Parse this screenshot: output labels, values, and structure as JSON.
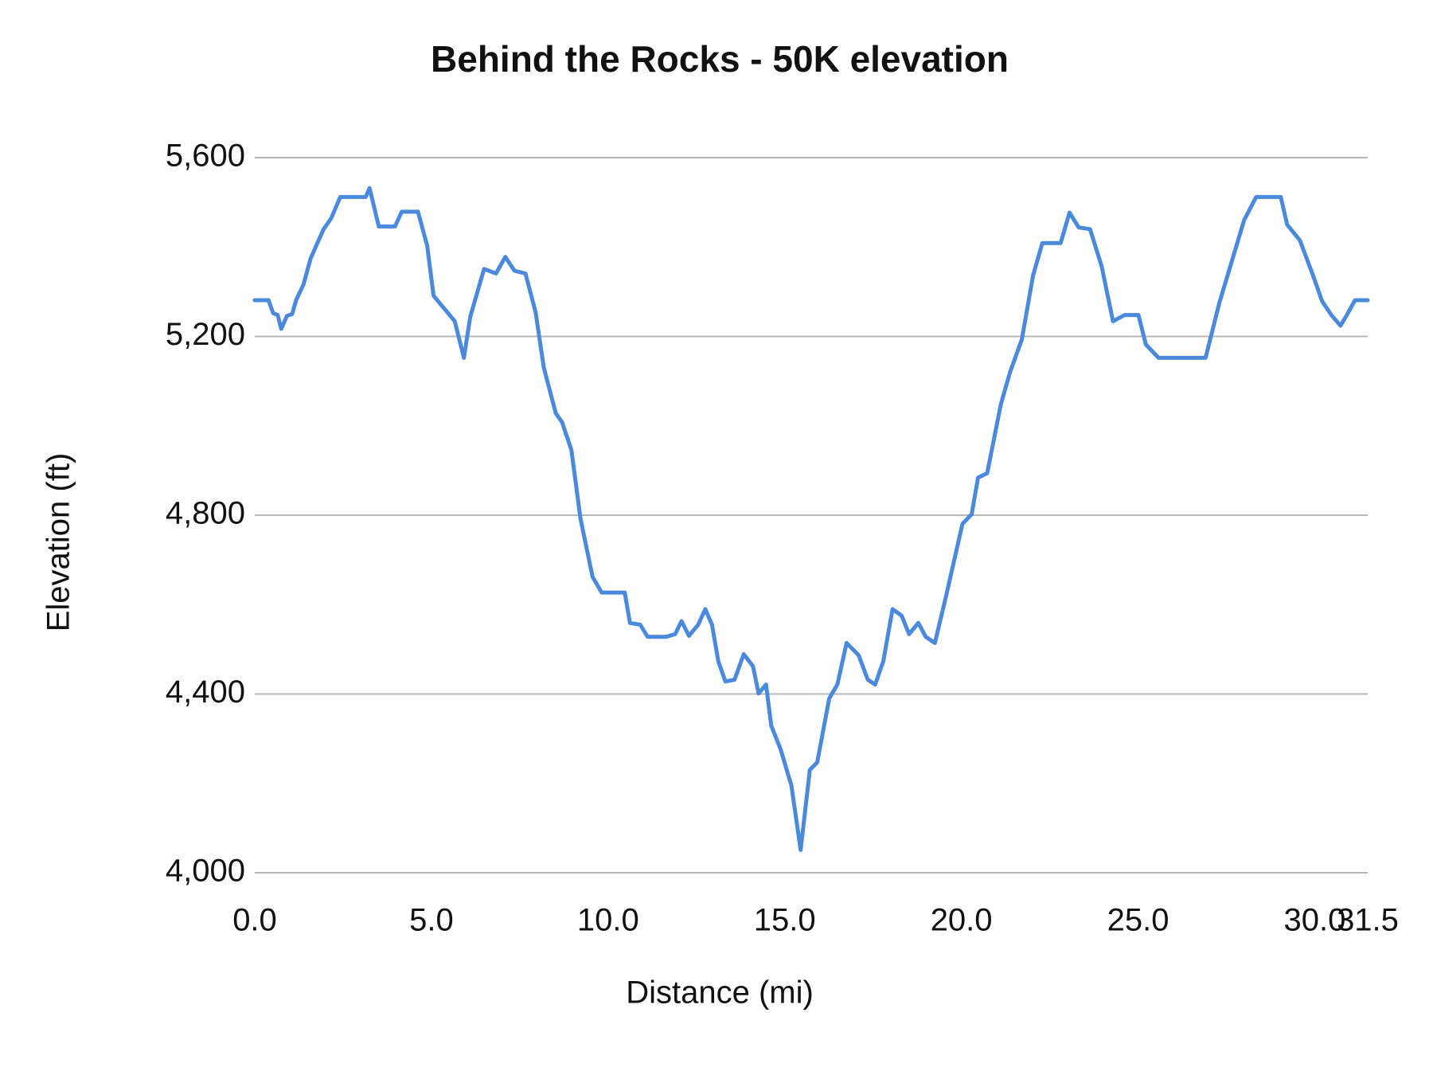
{
  "chart_data": {
    "type": "line",
    "title": "Behind the Rocks - 50K elevation",
    "x_label": "Distance (mi)",
    "y_label": "Elevation (ft)",
    "xlim": [
      0,
      31.5
    ],
    "ylim": [
      4000,
      5600
    ],
    "xticks": [
      {
        "value": 0,
        "label": "0.0"
      },
      {
        "value": 5,
        "label": "5.0"
      },
      {
        "value": 10,
        "label": "10.0"
      },
      {
        "value": 15,
        "label": "15.0"
      },
      {
        "value": 20,
        "label": "20.0"
      },
      {
        "value": 25,
        "label": "25.0"
      },
      {
        "value": 30,
        "label": "30.0"
      },
      {
        "value": 31.5,
        "label": "31.5"
      }
    ],
    "yticks": [
      {
        "value": 4000,
        "label": "4,000"
      },
      {
        "value": 4400,
        "label": "4,400"
      },
      {
        "value": 4800,
        "label": "4,800"
      },
      {
        "value": 5200,
        "label": "5,200"
      },
      {
        "value": 5600,
        "label": "5,600"
      }
    ],
    "grid": true,
    "x": [
      0,
      0.39,
      0.52,
      0.65,
      0.75,
      0.91,
      1.06,
      1.17,
      1.38,
      1.58,
      1.74,
      1.95,
      2.16,
      2.42,
      3.14,
      3.25,
      3.51,
      3.97,
      4.16,
      4.62,
      4.88,
      5.06,
      5.45,
      5.66,
      5.92,
      6.1,
      6.49,
      6.83,
      7.09,
      7.35,
      7.66,
      7.95,
      8.18,
      8.52,
      8.7,
      8.96,
      9.22,
      9.56,
      9.82,
      10.47,
      10.62,
      10.91,
      11.12,
      11.64,
      11.9,
      12.08,
      12.29,
      12.55,
      12.75,
      12.94,
      13.12,
      13.32,
      13.58,
      13.84,
      14.1,
      14.26,
      14.47,
      14.62,
      14.88,
      15.19,
      15.45,
      15.71,
      15.92,
      16.26,
      16.49,
      16.75,
      17.09,
      17.35,
      17.56,
      17.79,
      18.05,
      18.31,
      18.52,
      18.78,
      18.99,
      19.25,
      19.56,
      20.03,
      20.29,
      20.47,
      20.73,
      21.12,
      21.38,
      21.71,
      22.03,
      22.29,
      22.81,
      23.06,
      23.32,
      23.64,
      23.97,
      24.29,
      24.62,
      25.01,
      25.22,
      25.58,
      26.91,
      27.3,
      27.61,
      28.0,
      28.34,
      29.04,
      29.22,
      29.58,
      29.95,
      30.21,
      30.47,
      30.73,
      30.91,
      31.14,
      31.5
    ],
    "series": [
      {
        "color": "#4a89dc",
        "values": [
          5281,
          5281,
          5252,
          5248,
          5217,
          5246,
          5250,
          5281,
          5316,
          5374,
          5403,
          5440,
          5464,
          5512,
          5512,
          5532,
          5446,
          5446,
          5479,
          5479,
          5403,
          5291,
          5254,
          5234,
          5152,
          5244,
          5351,
          5341,
          5378,
          5347,
          5341,
          5254,
          5131,
          5028,
          5008,
          4946,
          4792,
          4662,
          4627,
          4627,
          4559,
          4555,
          4528,
          4528,
          4534,
          4563,
          4530,
          4555,
          4590,
          4555,
          4473,
          4428,
          4432,
          4489,
          4462,
          4401,
          4421,
          4329,
          4277,
          4195,
          4051,
          4230,
          4247,
          4390,
          4421,
          4514,
          4487,
          4432,
          4421,
          4473,
          4590,
          4575,
          4534,
          4559,
          4528,
          4514,
          4617,
          4781,
          4802,
          4884,
          4894,
          5049,
          5121,
          5193,
          5337,
          5409,
          5409,
          5477,
          5444,
          5440,
          5357,
          5234,
          5248,
          5248,
          5182,
          5152,
          5152,
          5275,
          5357,
          5460,
          5512,
          5512,
          5450,
          5415,
          5337,
          5279,
          5248,
          5224,
          5248,
          5281,
          5281
        ]
      }
    ]
  }
}
